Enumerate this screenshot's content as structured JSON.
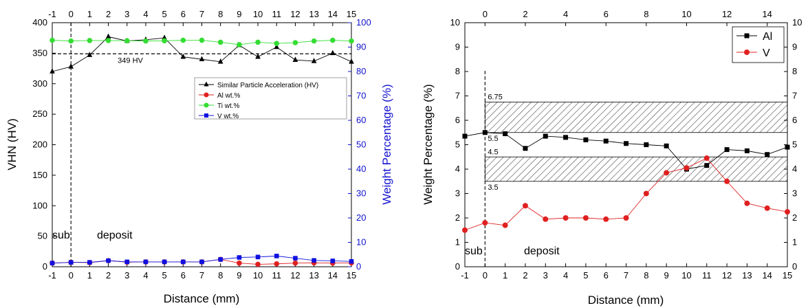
{
  "chart_data": [
    {
      "type": "line",
      "xlabel": "Distance (mm)",
      "ylabel": "VHN (HV)",
      "y2label": "Weight Percentage (%)",
      "xlim": [
        -1,
        15
      ],
      "ylim": [
        0,
        400
      ],
      "y2lim": [
        0,
        100
      ],
      "xticks": [
        "-1",
        "0",
        "1",
        "2",
        "3",
        "4",
        "5",
        "6",
        "7",
        "8",
        "9",
        "10",
        "11",
        "12",
        "13",
        "14",
        "15"
      ],
      "yticks": [
        "0",
        "50",
        "100",
        "150",
        "200",
        "250",
        "300",
        "350",
        "400"
      ],
      "y2ticks": [
        "0",
        "10",
        "20",
        "30",
        "40",
        "50",
        "60",
        "70",
        "80",
        "90",
        "100"
      ],
      "grid": false,
      "legend_position": "center-right",
      "x": [
        -1,
        0,
        1,
        2,
        3,
        4,
        5,
        6,
        7,
        8,
        9,
        10,
        11,
        12,
        13,
        14,
        15
      ],
      "series": [
        {
          "name": "Similar Particle Acceleration (HV)",
          "axis": "left",
          "marker": "triangle",
          "color": "#000000",
          "values": [
            320,
            328,
            347,
            377,
            370,
            372,
            375,
            344,
            340,
            336,
            363,
            344,
            360,
            339,
            337,
            350,
            336
          ]
        },
        {
          "name": "Al wt.%",
          "axis": "right",
          "marker": "circle",
          "color": "#e02020",
          "values": [
            1.5,
            1.8,
            1.7,
            2.5,
            1.9,
            2.0,
            2.0,
            2.0,
            2.0,
            3.0,
            1.5,
            1.0,
            1.2,
            1.5,
            1.6,
            1.5,
            1.6
          ]
        },
        {
          "name": "Ti wt.%",
          "axis": "right",
          "marker": "circle",
          "color": "#33dd33",
          "values": [
            92.8,
            92.5,
            92.7,
            92.7,
            92.6,
            92.5,
            92.6,
            92.8,
            92.8,
            92.0,
            91.0,
            92.0,
            91.5,
            91.8,
            92.5,
            92.8,
            92.5
          ]
        },
        {
          "name": "V wt.%",
          "axis": "right",
          "marker": "square",
          "color": "#1010e0",
          "values": [
            1.5,
            1.8,
            1.8,
            2.5,
            2.0,
            2.0,
            2.0,
            2.0,
            2.0,
            3.0,
            3.8,
            4.0,
            4.4,
            3.5,
            2.6,
            2.4,
            2.2
          ]
        }
      ],
      "reference_line": {
        "value": 349,
        "label": "349 HV"
      },
      "boundary_x": 0,
      "region_labels": [
        "sub",
        "deposit"
      ]
    },
    {
      "type": "line",
      "xlabel": "Distance (mm)",
      "ylabel": "Weight Percentage (%)",
      "xlim": [
        -1,
        15
      ],
      "ylim": [
        0,
        10
      ],
      "xticks": [
        "0",
        "2",
        "4",
        "6",
        "8",
        "10",
        "12",
        "14"
      ],
      "yticks": [
        "0",
        "1",
        "2",
        "3",
        "4",
        "5",
        "6",
        "7",
        "8",
        "9",
        "10"
      ],
      "grid": false,
      "legend_position": "top-right",
      "x": [
        -1,
        0,
        1,
        2,
        3,
        4,
        5,
        6,
        7,
        8,
        9,
        10,
        11,
        12,
        13,
        14,
        15
      ],
      "series": [
        {
          "name": "Al",
          "marker": "square",
          "color": "#000000",
          "values": [
            5.35,
            5.5,
            5.45,
            4.85,
            5.35,
            5.3,
            5.2,
            5.15,
            5.05,
            5.0,
            4.95,
            4.0,
            4.15,
            4.8,
            4.75,
            4.6,
            4.9
          ]
        },
        {
          "name": "V",
          "marker": "circle",
          "color": "#e02020",
          "values": [
            1.5,
            1.8,
            1.7,
            2.5,
            1.95,
            2.0,
            2.0,
            1.95,
            2.0,
            3.0,
            3.85,
            4.05,
            4.45,
            3.5,
            2.6,
            2.4,
            2.25
          ]
        }
      ],
      "bands": [
        {
          "from": 5.5,
          "to": 6.75,
          "labels": [
            "5.5",
            "6.75"
          ]
        },
        {
          "from": 3.5,
          "to": 4.5,
          "labels": [
            "3.5",
            "4.5"
          ]
        }
      ],
      "boundary_x": 0,
      "region_labels": [
        "sub",
        "deposit"
      ]
    }
  ]
}
